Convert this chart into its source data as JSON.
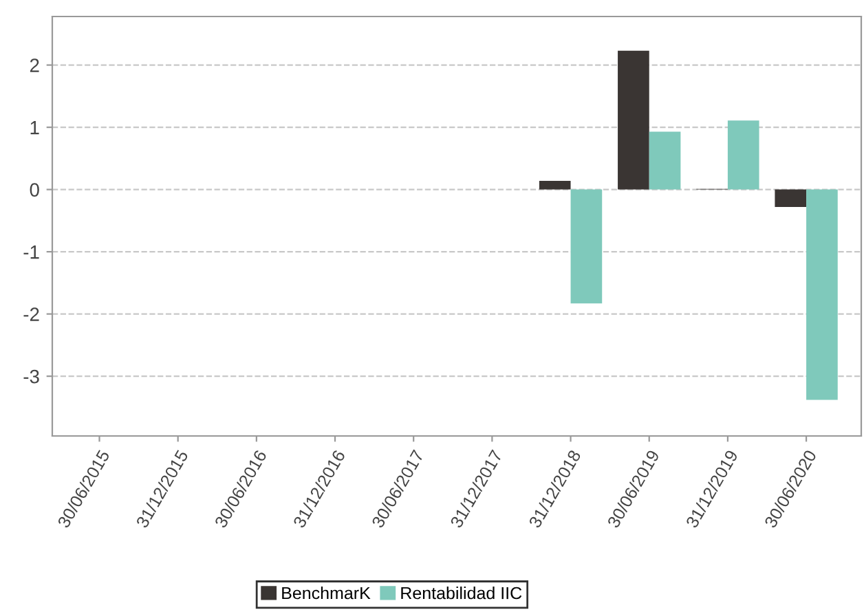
{
  "chart_data": {
    "type": "bar",
    "categories": [
      "30/06/2015",
      "31/12/2015",
      "30/06/2016",
      "31/12/2016",
      "30/06/2017",
      "31/12/2017",
      "31/12/2018",
      "30/06/2019",
      "31/12/2019",
      "30/06/2020"
    ],
    "series": [
      {
        "name": "BenchmarK",
        "color": "#3a3533",
        "values": [
          null,
          null,
          null,
          null,
          null,
          null,
          0.14,
          2.23,
          0.01,
          -0.28
        ]
      },
      {
        "name": "Rentabilidad IIC",
        "color": "#7fc9bb",
        "values": [
          null,
          null,
          null,
          null,
          null,
          null,
          -1.83,
          0.93,
          1.11,
          -3.38
        ]
      }
    ],
    "ylim": [
      -3.96,
      2.78
    ],
    "yticks": [
      -3,
      -2,
      -1,
      0,
      1,
      2
    ],
    "grid": "y",
    "legend": "bottom"
  }
}
